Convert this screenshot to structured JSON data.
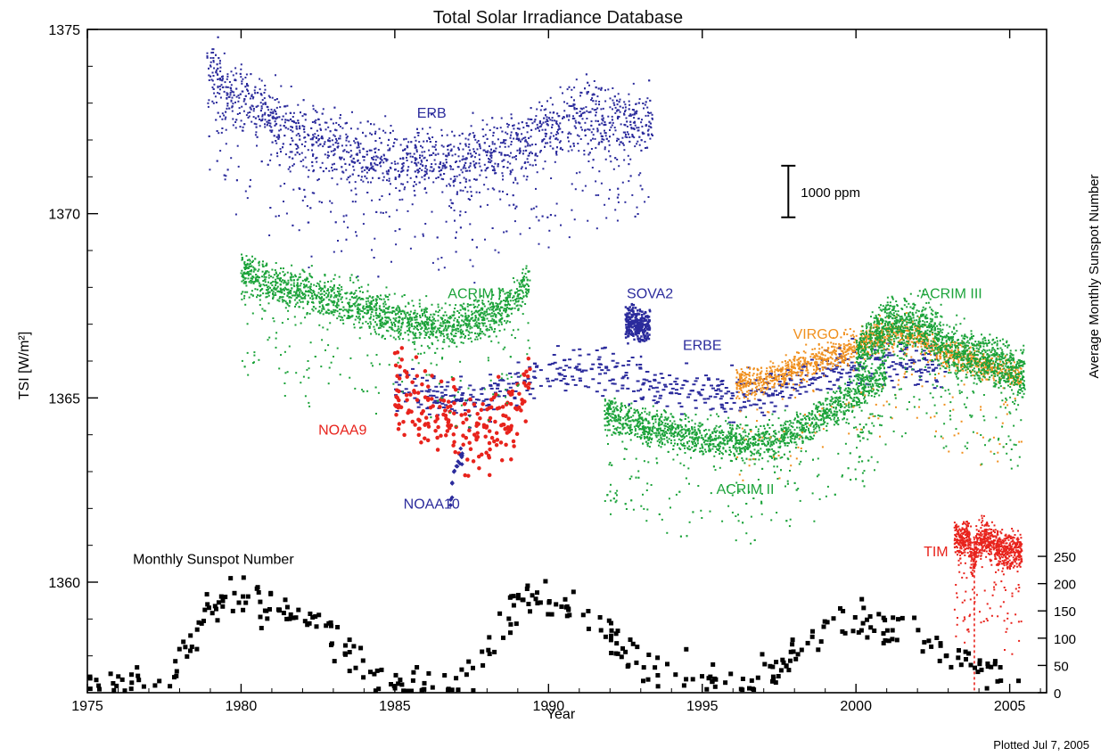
{
  "chart_data": {
    "type": "scatter",
    "title": "Total Solar Irradiance Database",
    "xlabel": "Year",
    "ylabel": "TSI [W/m²]",
    "y2label": "Average Monthly Sunspot Number",
    "footer": "Plotted Jul  7, 2005",
    "xlim": [
      1975,
      2006.2
    ],
    "ylim": [
      1357,
      1375
    ],
    "x_ticks": [
      1975,
      1980,
      1985,
      1990,
      1995,
      2000,
      2005
    ],
    "x_tick_labels": [
      "1975",
      "1980",
      "1985",
      "1990",
      "1995",
      "2000",
      "2005"
    ],
    "y_ticks": [
      1360,
      1365,
      1370,
      1375
    ],
    "y_tick_labels": [
      "1360",
      "1365",
      "1370",
      "1375"
    ],
    "y2_ticks": [
      0,
      50,
      100,
      150,
      200,
      250
    ],
    "y2_tick_labels": [
      "0",
      "50",
      "100",
      "150",
      "200",
      "250"
    ],
    "y2_axis_range": [
      0,
      250
    ],
    "scale_bar": {
      "label": "1000 ppm",
      "x": 1997.8,
      "y_range": [
        1369.9,
        1371.3
      ]
    },
    "colors": {
      "ERB": "#2b2b9c",
      "ACRIM I": "#1ca33a",
      "ACRIM II": "#1ca33a",
      "ACRIM III": "#1ca33a",
      "NOAA9": "#e8231c",
      "NOAA10": "#2b2b9c",
      "SOVA2": "#2b2b9c",
      "ERBE": "#2b2b9c",
      "VIRGO": "#f0901e",
      "TIM": "#e8231c",
      "Sunspot": "#000000"
    },
    "series": [
      {
        "name": "ERB",
        "label_pos": [
          1986.2,
          1372.6
        ],
        "x": [
          1978.9,
          1979.3,
          1979.8,
          1980.5,
          1981.2,
          1982.0,
          1983.0,
          1984.0,
          1985.0,
          1986.0,
          1987.0,
          1988.0,
          1989.0,
          1990.0,
          1991.0,
          1991.8,
          1992.5,
          1993.4
        ],
        "y": [
          1374.3,
          1373.6,
          1373.2,
          1372.8,
          1372.5,
          1372.2,
          1371.9,
          1371.6,
          1371.4,
          1371.5,
          1371.4,
          1371.6,
          1371.9,
          1372.3,
          1372.7,
          1372.6,
          1372.5,
          1372.6
        ]
      },
      {
        "name": "ACRIM I",
        "label_pos": [
          1987.6,
          1367.7
        ],
        "x": [
          1980.0,
          1981.0,
          1982.0,
          1983.0,
          1983.9,
          1984.4,
          1985.0,
          1986.0,
          1987.0,
          1988.0,
          1988.8,
          1989.4
        ],
        "y": [
          1368.4,
          1368.1,
          1367.9,
          1367.7,
          1367.5,
          1367.3,
          1367.2,
          1367.0,
          1367.0,
          1367.2,
          1367.6,
          1368.2
        ]
      },
      {
        "name": "ACRIM II",
        "label_pos": [
          1996.4,
          1362.4
        ],
        "x": [
          1991.8,
          1992.5,
          1993.5,
          1994.5,
          1995.5,
          1996.5,
          1997.5,
          1998.5,
          1999.5,
          2000.5,
          2001.0
        ],
        "y": [
          1364.6,
          1364.4,
          1364.2,
          1364.0,
          1363.9,
          1363.8,
          1363.9,
          1364.3,
          1364.8,
          1365.4,
          1365.8
        ]
      },
      {
        "name": "ACRIM III",
        "label_pos": [
          2003.1,
          1367.7
        ],
        "x": [
          2000.0,
          2000.5,
          2001.0,
          2001.5,
          2002.0,
          2002.5,
          2003.0,
          2003.5,
          2004.0,
          2004.5,
          2005.0,
          2005.5
        ],
        "y": [
          1366.0,
          1366.6,
          1367.1,
          1366.9,
          1367.1,
          1366.8,
          1366.4,
          1366.2,
          1366.1,
          1365.9,
          1365.8,
          1365.6
        ]
      },
      {
        "name": "NOAA9",
        "label_pos": [
          1983.3,
          1364.0
        ],
        "x": [
          1985.0,
          1985.4,
          1985.8,
          1986.2,
          1986.6,
          1987.0,
          1987.4,
          1987.8,
          1988.2,
          1988.6,
          1989.0,
          1989.4
        ],
        "y": [
          1365.3,
          1365.1,
          1364.9,
          1364.6,
          1364.4,
          1364.2,
          1364.0,
          1364.0,
          1364.2,
          1364.5,
          1364.9,
          1365.3
        ]
      },
      {
        "name": "NOAA10",
        "label_pos": [
          1986.2,
          1362.0
        ],
        "x": [
          1986.8,
          1986.9,
          1987.0,
          1987.1,
          1987.2
        ],
        "y": [
          1362.3,
          1362.8,
          1363.2,
          1363.4,
          1363.5
        ]
      },
      {
        "name": "SOVA2",
        "label_pos": [
          1993.3,
          1367.7
        ],
        "x": [
          1992.5,
          1992.7,
          1992.9,
          1993.1,
          1993.3
        ],
        "y": [
          1367.0,
          1367.1,
          1367.0,
          1366.9,
          1367.0
        ]
      },
      {
        "name": "ERBE",
        "label_pos": [
          1995.0,
          1366.3
        ],
        "x": [
          1985.0,
          1986.0,
          1987.0,
          1988.0,
          1989.0,
          1990.0,
          1991.0,
          1992.0,
          1993.0,
          1994.0,
          1995.0,
          1996.0,
          1997.0,
          1998.0,
          1999.0,
          2000.0,
          2001.0,
          2002.0,
          2003.0
        ],
        "y": [
          1365.3,
          1365.1,
          1364.9,
          1365.0,
          1365.3,
          1365.6,
          1365.8,
          1365.7,
          1365.5,
          1365.3,
          1365.1,
          1365.0,
          1365.2,
          1365.5,
          1365.7,
          1365.9,
          1366.0,
          1365.9,
          1365.7
        ]
      },
      {
        "name": "VIRGO",
        "label_pos": [
          1998.7,
          1366.6
        ],
        "x": [
          1996.1,
          1997.0,
          1998.0,
          1999.0,
          2000.0,
          2000.8,
          2001.5,
          2002.2,
          2003.0,
          2003.8,
          2004.5,
          2005.4
        ],
        "y": [
          1365.4,
          1365.5,
          1365.8,
          1366.1,
          1366.4,
          1366.7,
          1366.8,
          1366.6,
          1366.2,
          1366.0,
          1365.8,
          1365.6
        ]
      },
      {
        "name": "TIM",
        "label_pos": [
          2002.6,
          1360.7
        ],
        "x": [
          2003.2,
          2003.4,
          2003.6,
          2003.8,
          2004.0,
          2004.2,
          2004.4,
          2004.6,
          2004.8,
          2005.0,
          2005.2,
          2005.4
        ],
        "y": [
          1361.3,
          1361.0,
          1361.4,
          1360.6,
          1361.2,
          1361.2,
          1361.1,
          1361.0,
          1360.9,
          1360.8,
          1360.9,
          1360.8
        ]
      }
    ],
    "sunspot": {
      "name": "Monthly Sunspot Number",
      "label_pos": [
        1979.1,
        1360.5
      ],
      "x": [
        1975.0,
        1975.5,
        1976.0,
        1976.5,
        1977.0,
        1977.5,
        1978.0,
        1978.5,
        1979.0,
        1979.5,
        1980.0,
        1980.5,
        1981.0,
        1981.5,
        1982.0,
        1982.5,
        1983.0,
        1983.5,
        1984.0,
        1984.5,
        1985.0,
        1985.5,
        1986.0,
        1986.5,
        1987.0,
        1987.5,
        1988.0,
        1988.5,
        1989.0,
        1989.5,
        1990.0,
        1990.5,
        1991.0,
        1991.5,
        1992.0,
        1992.5,
        1993.0,
        1993.5,
        1994.0,
        1994.5,
        1995.0,
        1995.5,
        1996.0,
        1996.5,
        1997.0,
        1997.5,
        1998.0,
        1998.5,
        1999.0,
        1999.5,
        2000.0,
        2000.5,
        2001.0,
        2001.5,
        2002.0,
        2002.5,
        2003.0,
        2003.5,
        2004.0,
        2004.5,
        2005.0,
        2005.4
      ],
      "y": [
        12,
        10,
        10,
        12,
        15,
        25,
        60,
        110,
        150,
        170,
        185,
        170,
        160,
        150,
        140,
        120,
        90,
        70,
        50,
        30,
        20,
        15,
        10,
        12,
        15,
        40,
        80,
        130,
        170,
        175,
        160,
        150,
        160,
        140,
        110,
        80,
        60,
        50,
        40,
        30,
        20,
        18,
        10,
        10,
        20,
        45,
        70,
        90,
        110,
        130,
        140,
        120,
        110,
        120,
        110,
        95,
        70,
        60,
        45,
        40,
        35,
        30
      ]
    }
  }
}
